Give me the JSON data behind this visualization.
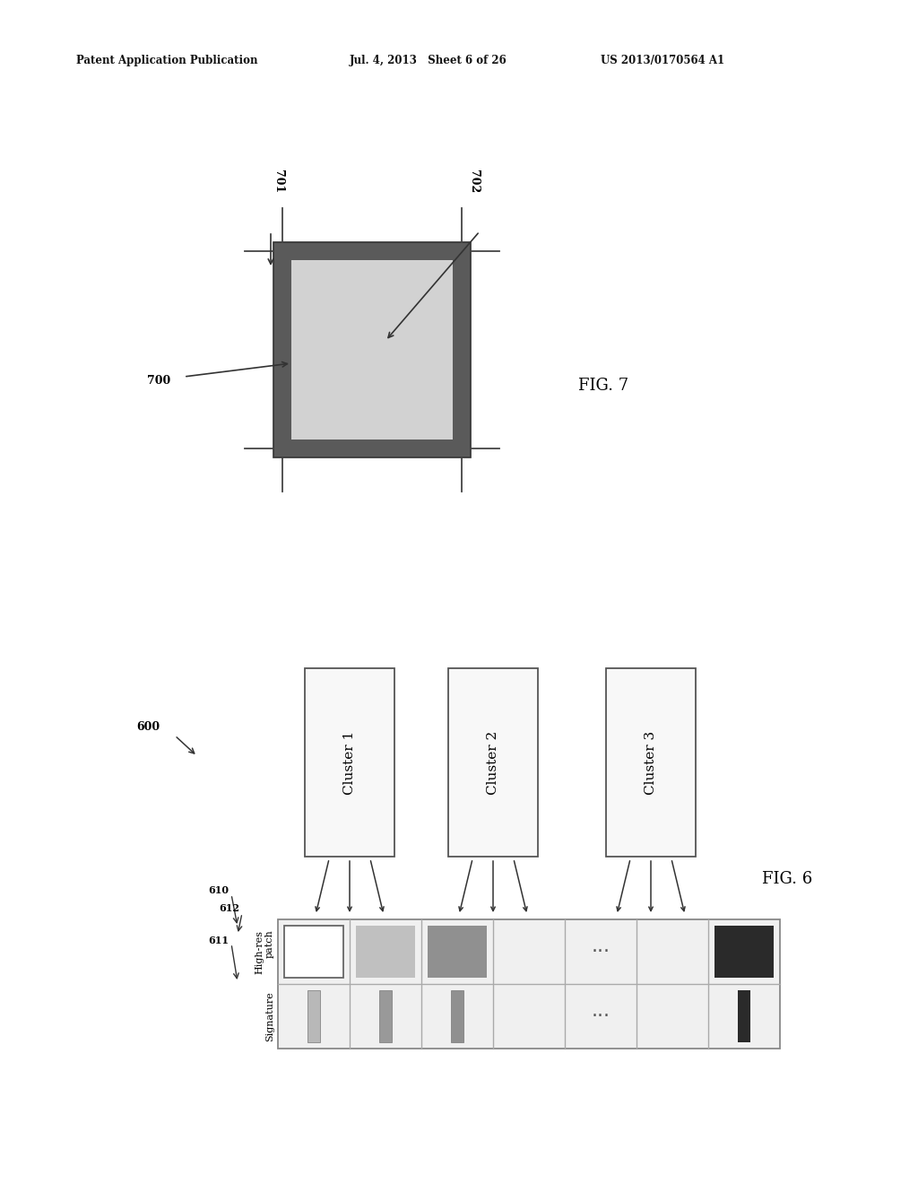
{
  "bg_color": "#ffffff",
  "header_left": "Patent Application Publication",
  "header_mid": "Jul. 4, 2013   Sheet 6 of 26",
  "header_right": "US 2013/0170564 A1",
  "fig7_label": "FIG. 7",
  "fig6_label": "FIG. 6",
  "label_700": "700",
  "label_701": "701",
  "label_702": "702",
  "label_600": "600",
  "label_610": "610",
  "label_611": "611",
  "label_612": "612",
  "cluster_labels": [
    "Cluster 1",
    "Cluster 2",
    "Cluster 3"
  ],
  "outer_dark_color": "#5a5a5a",
  "inner_light_color": "#d2d2d2",
  "cluster_fill": "#f8f8f8",
  "table_fill": "#f5f5f5",
  "patch_white": "#ffffff",
  "patch_lightgray": "#c0c0c0",
  "patch_midgray": "#909090",
  "patch_dark": "#2a2a2a",
  "sig_lightgray": "#b8b8b8",
  "sig_midgray": "#909090",
  "sig_dark": "#2a2a2a",
  "line_color": "#444444",
  "text_color": "#111111"
}
